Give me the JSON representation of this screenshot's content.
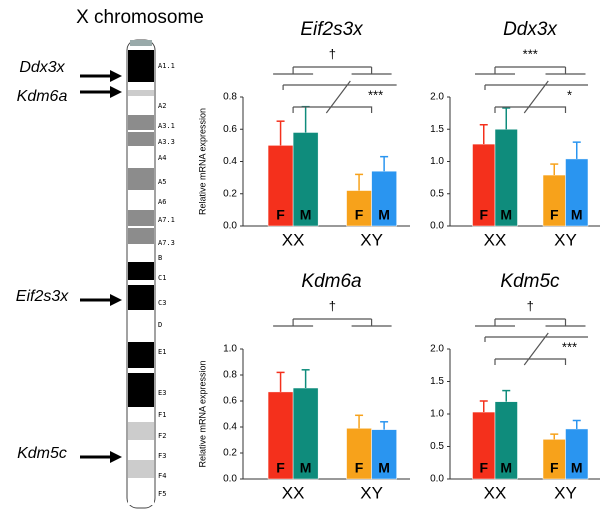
{
  "ideogram": {
    "title": "X chromosome",
    "bands": [
      {
        "label": "A1.1",
        "color": "#000000"
      },
      {
        "label": "A2",
        "color": "#ffffff"
      },
      {
        "label": "A3.1",
        "color": "#8c8c8c"
      },
      {
        "label": "A3.3",
        "color": "#8c8c8c"
      },
      {
        "label": "A4",
        "color": "#ffffff"
      },
      {
        "label": "A5",
        "color": "#8c8c8c"
      },
      {
        "label": "A6",
        "color": "#ffffff"
      },
      {
        "label": "A7.1",
        "color": "#8c8c8c"
      },
      {
        "label": "A7.3",
        "color": "#8c8c8c"
      },
      {
        "label": "B",
        "color": "#ffffff"
      },
      {
        "label": "C1",
        "color": "#000000"
      },
      {
        "label": "C3",
        "color": "#000000"
      },
      {
        "label": "D",
        "color": "#ffffff"
      },
      {
        "label": "E1",
        "color": "#000000"
      },
      {
        "label": "E3",
        "color": "#000000"
      },
      {
        "label": "F1",
        "color": "#ffffff"
      },
      {
        "label": "F2",
        "color": "#cccccc"
      },
      {
        "label": "F3",
        "color": "#ffffff"
      },
      {
        "label": "F4",
        "color": "#cccccc"
      },
      {
        "label": "F5",
        "color": "#ffffff"
      }
    ],
    "genes": [
      "Ddx3x",
      "Kdm6a",
      "Eif2s3x",
      "Kdm5c"
    ]
  },
  "chart_data": [
    {
      "type": "bar",
      "title": "Eif2s3x",
      "ylabel": "Relative mRNA expression",
      "categories": [
        "XX",
        "XY"
      ],
      "series": [
        {
          "name": "F",
          "colors": [
            "#f4301c",
            "#f7a21b"
          ],
          "values": [
            0.5,
            0.22
          ],
          "errors": [
            0.15,
            0.1
          ]
        },
        {
          "name": "M",
          "colors": [
            "#0f8c7c",
            "#2a95f0"
          ],
          "values": [
            0.58,
            0.34
          ],
          "errors": [
            0.16,
            0.09
          ]
        }
      ],
      "ylim": [
        0,
        0.8
      ],
      "yticks": [
        {
          "value": 0,
          "label": "0.0"
        },
        0.2,
        0.4,
        0.6,
        0.8
      ],
      "annotations": [
        "†",
        "***"
      ]
    },
    {
      "type": "bar",
      "title": "Ddx3x",
      "categories": [
        "XX",
        "XY"
      ],
      "series": [
        {
          "name": "F",
          "colors": [
            "#f4301c",
            "#f7a21b"
          ],
          "values": [
            1.27,
            0.79
          ],
          "errors": [
            0.3,
            0.17
          ]
        },
        {
          "name": "M",
          "colors": [
            "#0f8c7c",
            "#2a95f0"
          ],
          "values": [
            1.5,
            1.04
          ],
          "errors": [
            0.33,
            0.26
          ]
        }
      ],
      "ylim": [
        0,
        2
      ],
      "yticks": [
        {
          "value": 0,
          "label": "0.0"
        },
        0.5,
        {
          "value": 1,
          "label": "1.0"
        },
        1.5,
        {
          "value": 2,
          "label": "2.0"
        }
      ],
      "annotations": [
        "***",
        "*"
      ]
    },
    {
      "type": "bar",
      "title": "Kdm6a",
      "ylabel": "Relative mRNA expression",
      "categories": [
        "XX",
        "XY"
      ],
      "series": [
        {
          "name": "F",
          "colors": [
            "#f4301c",
            "#f7a21b"
          ],
          "values": [
            0.67,
            0.39
          ],
          "errors": [
            0.15,
            0.1
          ]
        },
        {
          "name": "M",
          "colors": [
            "#0f8c7c",
            "#2a95f0"
          ],
          "values": [
            0.7,
            0.38
          ],
          "errors": [
            0.14,
            0.06
          ]
        }
      ],
      "ylim": [
        0,
        1
      ],
      "yticks": [
        {
          "value": 0,
          "label": "0.0"
        },
        0.2,
        0.4,
        0.6,
        0.8,
        {
          "value": 1,
          "label": "1.0"
        }
      ],
      "annotations": [
        "†"
      ]
    },
    {
      "type": "bar",
      "title": "Kdm5c",
      "categories": [
        "XX",
        "XY"
      ],
      "series": [
        {
          "name": "F",
          "colors": [
            "#f4301c",
            "#f7a21b"
          ],
          "values": [
            1.03,
            0.61
          ],
          "errors": [
            0.17,
            0.08
          ]
        },
        {
          "name": "M",
          "colors": [
            "#0f8c7c",
            "#2a95f0"
          ],
          "values": [
            1.19,
            0.77
          ],
          "errors": [
            0.17,
            0.13
          ]
        }
      ],
      "ylim": [
        0,
        2
      ],
      "yticks": [
        {
          "value": 0,
          "label": "0.0"
        },
        0.5,
        {
          "value": 1,
          "label": "1.0"
        },
        1.5,
        {
          "value": 2,
          "label": "2.0"
        }
      ],
      "annotations": [
        "†",
        "***"
      ]
    }
  ]
}
